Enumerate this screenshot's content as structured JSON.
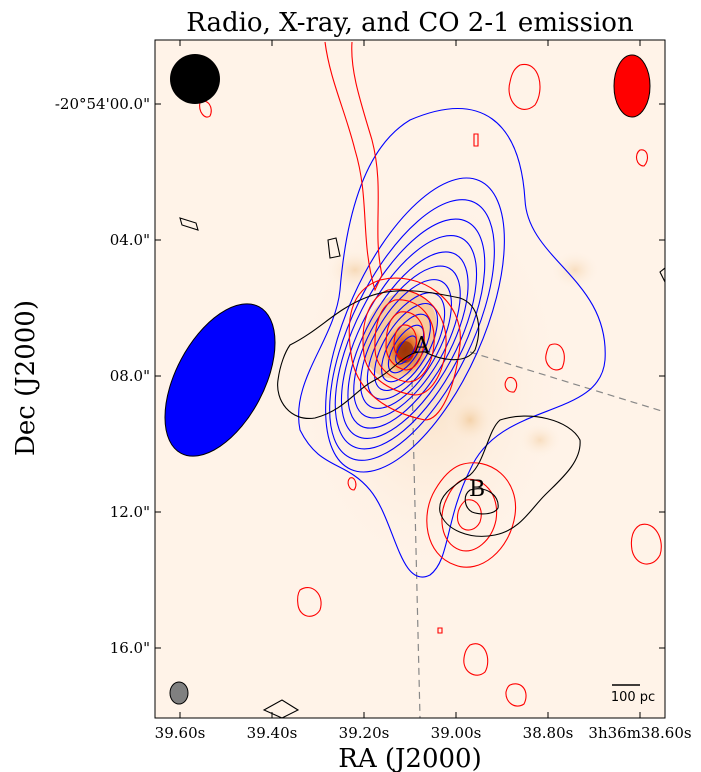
{
  "chart_data": {
    "type": "contour",
    "title": "Radio, X-ray, and CO 2-1 emission",
    "xlabel": "RA (J2000)",
    "ylabel": "Dec (J2000)",
    "x_ticks": [
      "39.60s",
      "39.40s",
      "39.20s",
      "39.00s",
      "38.80s",
      "3h36m38.60s"
    ],
    "y_ticks": [
      "-20°54'00.0\"",
      "04.0\"",
      "08.0\"",
      "12.0\"",
      "16.0\""
    ],
    "y_tick_offsets_arcsec": [
      0,
      4,
      8,
      12,
      16
    ],
    "x_tick_seconds": [
      39.6,
      39.4,
      39.2,
      39.0,
      38.8,
      38.6
    ],
    "annotations": [
      {
        "label": "A",
        "ra_s": 39.07,
        "dec_offset_arcsec": 7.6
      },
      {
        "label": "B",
        "ra_s": 38.95,
        "dec_offset_arcsec": 11.3
      }
    ],
    "scale_bar": {
      "label": "100 pc"
    },
    "colors": {
      "radio_contours": "#0000ff",
      "co_contours": "#ff0000",
      "xray_contours": "#000000",
      "background": "#fff3e8",
      "emission_core": "#c8480a"
    },
    "beams": [
      "black",
      "red",
      "blue",
      "gray"
    ]
  }
}
